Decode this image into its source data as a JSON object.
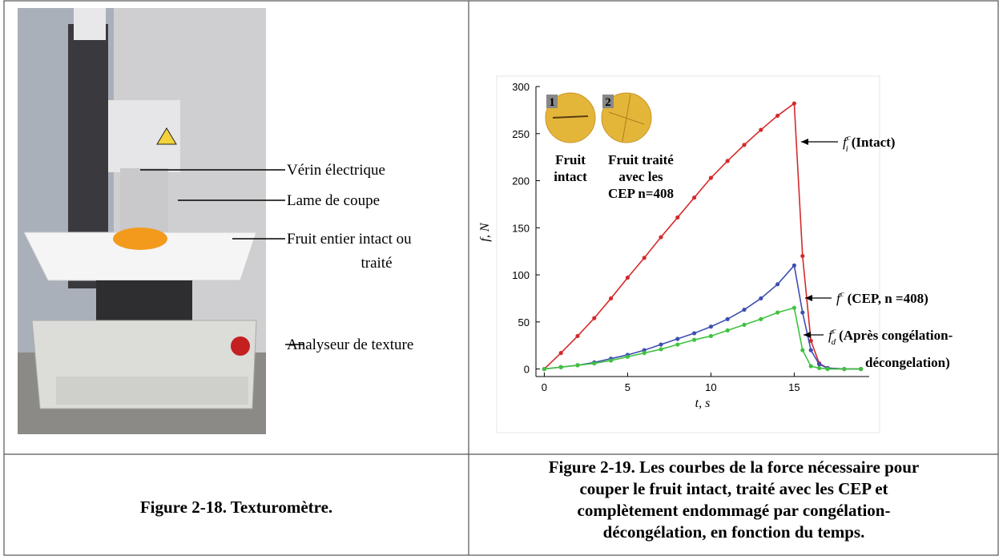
{
  "left": {
    "labels": [
      {
        "lines": [
          "Vérin électrique"
        ]
      },
      {
        "lines": [
          "Lame de coupe"
        ]
      },
      {
        "lines": [
          "Fruit entier intact ou",
          "traité"
        ]
      },
      {
        "lines": [
          "Analyseur de texture"
        ]
      }
    ],
    "caption": "Figure 2-18. Texturomètre."
  },
  "right": {
    "chart_data": {
      "type": "line",
      "xlabel": "t, s",
      "ylabel": "f, N",
      "x": [
        0,
        1,
        2,
        3,
        4,
        5,
        6,
        7,
        8,
        9,
        10,
        11,
        12,
        13,
        14,
        15,
        15.5,
        16,
        16.5,
        17,
        18,
        19
      ],
      "series": [
        {
          "color": "#d42a2a",
          "values": [
            0,
            17,
            35,
            54,
            75,
            97,
            118,
            140,
            161,
            182,
            203,
            221,
            238,
            254,
            269,
            282,
            120,
            30,
            6,
            1,
            0,
            0
          ]
        },
        {
          "color": "#3d4fb0",
          "values": [
            0,
            2,
            4,
            7,
            11,
            15,
            20,
            26,
            32,
            38,
            45,
            53,
            63,
            75,
            90,
            110,
            60,
            20,
            5,
            1,
            0,
            0
          ]
        },
        {
          "color": "#3fc23f",
          "values": [
            0,
            2,
            4,
            6,
            9,
            13,
            17,
            21,
            26,
            31,
            35,
            41,
            47,
            53,
            60,
            65,
            20,
            3,
            1,
            0,
            0,
            0
          ]
        }
      ],
      "xlim": [
        -0.5,
        19.5
      ],
      "ylim": [
        -8,
        300
      ],
      "xticks": [
        0,
        5,
        10,
        15
      ],
      "yticks": [
        0,
        50,
        100,
        150,
        200,
        250,
        300
      ],
      "annotations": [
        {
          "main": "f",
          "sub": "i",
          "sup": "c",
          "text": "(Intact)"
        },
        {
          "main": "f",
          "sup": "c",
          "text": "(CEP, n =408)"
        },
        {
          "main": "f",
          "sub": "d",
          "sup": "c",
          "text": "(Après congélation-",
          "text2": "décongelation)"
        }
      ],
      "inset": [
        {
          "number": "1",
          "lines": [
            "Fruit",
            "intact"
          ]
        },
        {
          "number": "2",
          "lines": [
            "Fruit traité",
            "avec les",
            "CEP n=408"
          ]
        }
      ]
    },
    "caption": [
      "Figure 2-19. Les courbes de la force nécessaire pour",
      "couper le fruit intact, traité avec les CEP et",
      "complètement endommagé par congélation-",
      "décongélation, en fonction du temps."
    ]
  }
}
